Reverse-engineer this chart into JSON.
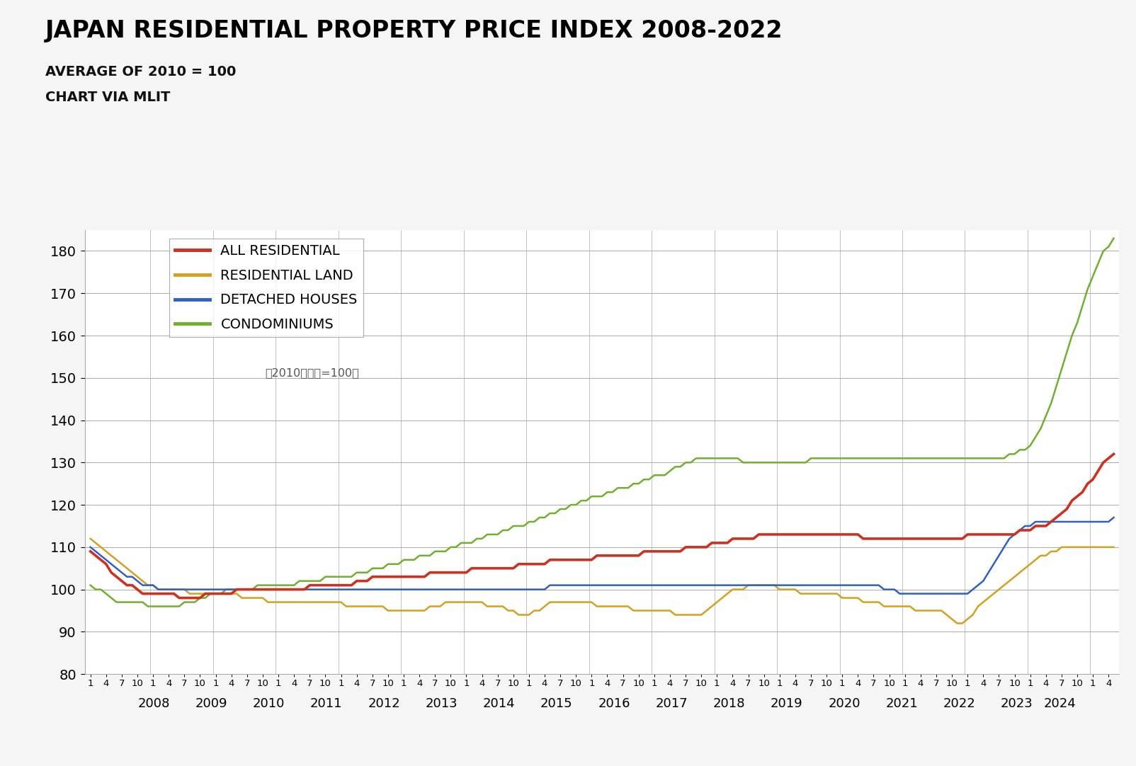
{
  "title": "JAPAN RESIDENTIAL PROPERTY PRICE INDEX 2008-2022",
  "subtitle1": "AVERAGE OF 2010 = 100",
  "subtitle2": "CHART VIA MLIT",
  "annotation": "（2010年平均=100）",
  "ylim": [
    80,
    185
  ],
  "yticks": [
    80,
    90,
    100,
    110,
    120,
    130,
    140,
    150,
    160,
    170,
    180
  ],
  "colors": {
    "all_residential": "#d03020",
    "residential_land": "#d4a020",
    "detached_houses": "#3060c0",
    "condominiums": "#70b030"
  },
  "legend_labels": [
    "ALL RESIDENTIAL",
    "RESIDENTIAL LAND",
    "DETACHED HOUSES",
    "CONDOMINIUMS"
  ],
  "bg_color": "#ffffff",
  "fig_bg": "#f5f5f5",
  "all_residential": [
    109,
    108,
    107,
    106,
    104,
    103,
    102,
    101,
    101,
    100,
    99,
    99,
    99,
    99,
    99,
    99,
    99,
    98,
    98,
    98,
    98,
    98,
    99,
    99,
    99,
    99,
    99,
    99,
    100,
    100,
    100,
    100,
    100,
    100,
    100,
    100,
    100,
    100,
    100,
    100,
    100,
    100,
    101,
    101,
    101,
    101,
    101,
    101,
    101,
    101,
    101,
    102,
    102,
    102,
    103,
    103,
    103,
    103,
    103,
    103,
    103,
    103,
    103,
    103,
    103,
    104,
    104,
    104,
    104,
    104,
    104,
    104,
    104,
    105,
    105,
    105,
    105,
    105,
    105,
    105,
    105,
    105,
    106,
    106,
    106,
    106,
    106,
    106,
    107,
    107,
    107,
    107,
    107,
    107,
    107,
    107,
    107,
    108,
    108,
    108,
    108,
    108,
    108,
    108,
    108,
    108,
    109,
    109,
    109,
    109,
    109,
    109,
    109,
    109,
    110,
    110,
    110,
    110,
    110,
    111,
    111,
    111,
    111,
    112,
    112,
    112,
    112,
    112,
    113,
    113,
    113,
    113,
    113,
    113,
    113,
    113,
    113,
    113,
    113,
    113,
    113,
    113,
    113,
    113,
    113,
    113,
    113,
    113,
    112,
    112,
    112,
    112,
    112,
    112,
    112,
    112,
    112,
    112,
    112,
    112,
    112,
    112,
    112,
    112,
    112,
    112,
    112,
    112,
    113,
    113,
    113,
    113,
    113,
    113,
    113,
    113,
    113,
    113,
    114,
    114,
    114,
    115,
    115,
    115,
    116,
    117,
    118,
    119,
    121,
    122,
    123,
    125,
    126,
    128,
    130,
    131,
    132
  ],
  "residential_land": [
    112,
    111,
    110,
    109,
    108,
    107,
    106,
    105,
    104,
    103,
    102,
    101,
    101,
    100,
    100,
    100,
    100,
    100,
    100,
    99,
    99,
    99,
    99,
    99,
    99,
    99,
    99,
    99,
    99,
    98,
    98,
    98,
    98,
    98,
    97,
    97,
    97,
    97,
    97,
    97,
    97,
    97,
    97,
    97,
    97,
    97,
    97,
    97,
    97,
    96,
    96,
    96,
    96,
    96,
    96,
    96,
    96,
    95,
    95,
    95,
    95,
    95,
    95,
    95,
    95,
    96,
    96,
    96,
    97,
    97,
    97,
    97,
    97,
    97,
    97,
    97,
    96,
    96,
    96,
    96,
    95,
    95,
    94,
    94,
    94,
    95,
    95,
    96,
    97,
    97,
    97,
    97,
    97,
    97,
    97,
    97,
    97,
    96,
    96,
    96,
    96,
    96,
    96,
    96,
    95,
    95,
    95,
    95,
    95,
    95,
    95,
    95,
    94,
    94,
    94,
    94,
    94,
    94,
    95,
    96,
    97,
    98,
    99,
    100,
    100,
    100,
    101,
    101,
    101,
    101,
    101,
    101,
    100,
    100,
    100,
    100,
    99,
    99,
    99,
    99,
    99,
    99,
    99,
    99,
    98,
    98,
    98,
    98,
    97,
    97,
    97,
    97,
    96,
    96,
    96,
    96,
    96,
    96,
    95,
    95,
    95,
    95,
    95,
    95,
    94,
    93,
    92,
    92,
    93,
    94,
    96,
    97,
    98,
    99,
    100,
    101,
    102,
    103,
    104,
    105,
    106,
    107,
    108,
    108,
    109,
    109,
    110,
    110,
    110,
    110,
    110,
    110,
    110,
    110,
    110,
    110,
    110
  ],
  "detached_houses": [
    110,
    109,
    108,
    107,
    106,
    105,
    104,
    103,
    103,
    102,
    101,
    101,
    101,
    100,
    100,
    100,
    100,
    100,
    100,
    100,
    100,
    100,
    100,
    100,
    100,
    100,
    100,
    100,
    100,
    100,
    100,
    100,
    100,
    100,
    100,
    100,
    100,
    100,
    100,
    100,
    100,
    100,
    100,
    100,
    100,
    100,
    100,
    100,
    100,
    100,
    100,
    100,
    100,
    100,
    100,
    100,
    100,
    100,
    100,
    100,
    100,
    100,
    100,
    100,
    100,
    100,
    100,
    100,
    100,
    100,
    100,
    100,
    100,
    100,
    100,
    100,
    100,
    100,
    100,
    100,
    100,
    100,
    100,
    100,
    100,
    100,
    100,
    100,
    101,
    101,
    101,
    101,
    101,
    101,
    101,
    101,
    101,
    101,
    101,
    101,
    101,
    101,
    101,
    101,
    101,
    101,
    101,
    101,
    101,
    101,
    101,
    101,
    101,
    101,
    101,
    101,
    101,
    101,
    101,
    101,
    101,
    101,
    101,
    101,
    101,
    101,
    101,
    101,
    101,
    101,
    101,
    101,
    101,
    101,
    101,
    101,
    101,
    101,
    101,
    101,
    101,
    101,
    101,
    101,
    101,
    101,
    101,
    101,
    101,
    101,
    101,
    101,
    100,
    100,
    100,
    99,
    99,
    99,
    99,
    99,
    99,
    99,
    99,
    99,
    99,
    99,
    99,
    99,
    99,
    100,
    101,
    102,
    104,
    106,
    108,
    110,
    112,
    113,
    114,
    115,
    115,
    116,
    116,
    116,
    116,
    116,
    116,
    116,
    116,
    116,
    116,
    116,
    116,
    116,
    116,
    116,
    117
  ],
  "condominiums": [
    101,
    100,
    100,
    99,
    98,
    97,
    97,
    97,
    97,
    97,
    97,
    96,
    96,
    96,
    96,
    96,
    96,
    96,
    97,
    97,
    97,
    98,
    98,
    99,
    99,
    99,
    100,
    100,
    100,
    100,
    100,
    100,
    101,
    101,
    101,
    101,
    101,
    101,
    101,
    101,
    102,
    102,
    102,
    102,
    102,
    103,
    103,
    103,
    103,
    103,
    103,
    104,
    104,
    104,
    105,
    105,
    105,
    106,
    106,
    106,
    107,
    107,
    107,
    108,
    108,
    108,
    109,
    109,
    109,
    110,
    110,
    111,
    111,
    111,
    112,
    112,
    113,
    113,
    113,
    114,
    114,
    115,
    115,
    115,
    116,
    116,
    117,
    117,
    118,
    118,
    119,
    119,
    120,
    120,
    121,
    121,
    122,
    122,
    122,
    123,
    123,
    124,
    124,
    124,
    125,
    125,
    126,
    126,
    127,
    127,
    127,
    128,
    129,
    129,
    130,
    130,
    131,
    131,
    131,
    131,
    131,
    131,
    131,
    131,
    131,
    130,
    130,
    130,
    130,
    130,
    130,
    130,
    130,
    130,
    130,
    130,
    130,
    130,
    131,
    131,
    131,
    131,
    131,
    131,
    131,
    131,
    131,
    131,
    131,
    131,
    131,
    131,
    131,
    131,
    131,
    131,
    131,
    131,
    131,
    131,
    131,
    131,
    131,
    131,
    131,
    131,
    131,
    131,
    131,
    131,
    131,
    131,
    131,
    131,
    131,
    131,
    132,
    132,
    133,
    133,
    134,
    136,
    138,
    141,
    144,
    148,
    152,
    156,
    160,
    163,
    167,
    171,
    174,
    177,
    180,
    181,
    183
  ]
}
